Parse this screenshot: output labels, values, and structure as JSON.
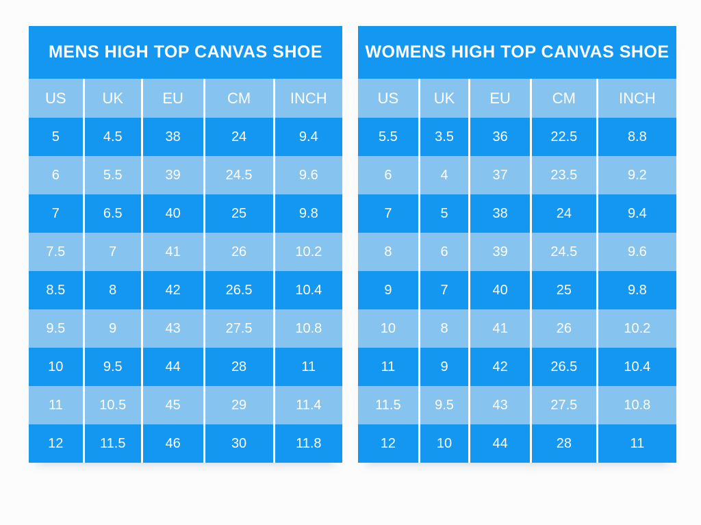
{
  "colors": {
    "page_bg": "#fcfcfc",
    "title_bg": "#1397f0",
    "header_bg": "#87c3ef",
    "row_dark": "#1397f0",
    "row_light": "#87c3ef",
    "gridline": "#ffffff",
    "text": "#ffffff"
  },
  "chart_data": [
    {
      "type": "table",
      "title": "MENS HIGH TOP CANVAS SHOE",
      "columns": [
        "US",
        "UK",
        "EU",
        "CM",
        "INCH"
      ],
      "rows": [
        [
          "5",
          "4.5",
          "38",
          "24",
          "9.4"
        ],
        [
          "6",
          "5.5",
          "39",
          "24.5",
          "9.6"
        ],
        [
          "7",
          "6.5",
          "40",
          "25",
          "9.8"
        ],
        [
          "7.5",
          "7",
          "41",
          "26",
          "10.2"
        ],
        [
          "8.5",
          "8",
          "42",
          "26.5",
          "10.4"
        ],
        [
          "9.5",
          "9",
          "43",
          "27.5",
          "10.8"
        ],
        [
          "10",
          "9.5",
          "44",
          "28",
          "11"
        ],
        [
          "11",
          "10.5",
          "45",
          "29",
          "11.4"
        ],
        [
          "12",
          "11.5",
          "46",
          "30",
          "11.8"
        ]
      ]
    },
    {
      "type": "table",
      "title": "WOMENS HIGH TOP CANVAS SHOE",
      "columns": [
        "US",
        "UK",
        "EU",
        "CM",
        "INCH"
      ],
      "rows": [
        [
          "5.5",
          "3.5",
          "36",
          "22.5",
          "8.8"
        ],
        [
          "6",
          "4",
          "37",
          "23.5",
          "9.2"
        ],
        [
          "7",
          "5",
          "38",
          "24",
          "9.4"
        ],
        [
          "8",
          "6",
          "39",
          "24.5",
          "9.6"
        ],
        [
          "9",
          "7",
          "40",
          "25",
          "9.8"
        ],
        [
          "10",
          "8",
          "41",
          "26",
          "10.2"
        ],
        [
          "11",
          "9",
          "42",
          "26.5",
          "10.4"
        ],
        [
          "11.5",
          "9.5",
          "43",
          "27.5",
          "10.8"
        ],
        [
          "12",
          "10",
          "44",
          "28",
          "11"
        ]
      ]
    }
  ]
}
